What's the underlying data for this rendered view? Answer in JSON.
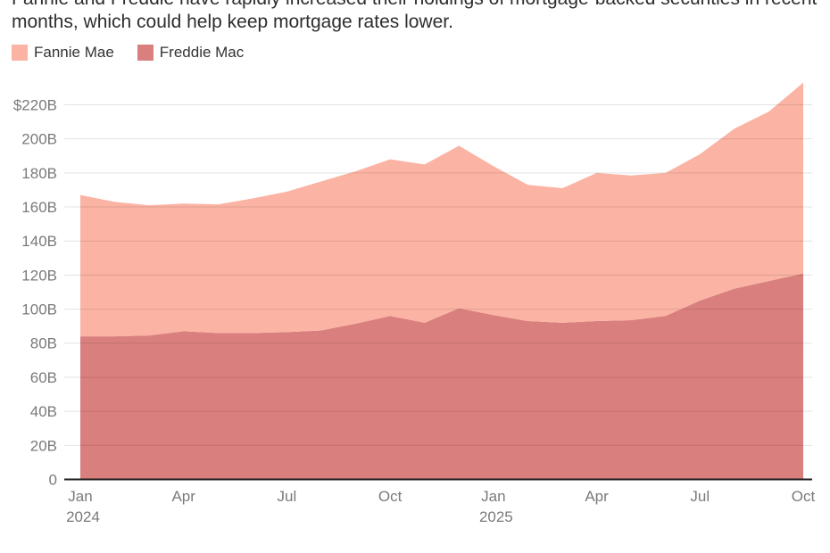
{
  "title": {
    "line1": "Fannie and Freddie have rapidly increased their holdings of mortgage-backed securities in recent",
    "line2": "months, which could help keep mortgage rates lower."
  },
  "legend": [
    {
      "label": "Fannie Mae",
      "color": "#FBB3A3"
    },
    {
      "label": "Freddie Mac",
      "color": "#D97F7E"
    }
  ],
  "chart_data": {
    "type": "area",
    "stacked": true,
    "unit": "billions of dollars",
    "x": [
      "Jan 2024",
      "Feb 2024",
      "Mar 2024",
      "Apr 2024",
      "May 2024",
      "Jun 2024",
      "Jul 2024",
      "Aug 2024",
      "Sep 2024",
      "Oct 2024",
      "Nov 2024",
      "Dec 2024",
      "Jan 2025",
      "Feb 2025",
      "Mar 2025",
      "Apr 2025",
      "May 2025",
      "Jun 2025",
      "Jul 2025",
      "Aug 2025",
      "Sep 2025",
      "Oct 2025"
    ],
    "series": [
      {
        "name": "Freddie Mac",
        "color": "#D97F7E",
        "values": [
          84,
          84,
          84.5,
          87,
          86,
          86,
          86.5,
          87.5,
          91.5,
          96,
          92,
          100.5,
          96.5,
          93,
          92,
          93,
          93.5,
          96,
          105,
          112,
          116.5,
          121
        ]
      },
      {
        "name": "Fannie Mae",
        "color": "#FBB3A3",
        "values": [
          83,
          79,
          76.5,
          75,
          75.5,
          79,
          82.5,
          87.5,
          89.5,
          92,
          93,
          95.5,
          87.5,
          80,
          79,
          87,
          85,
          84,
          86,
          94,
          99.5,
          112
        ]
      }
    ],
    "stacked_totals": [
      167,
      163,
      161,
      162,
      161.5,
      165,
      169,
      175,
      181,
      188,
      185,
      196,
      184,
      173,
      171,
      180,
      178.5,
      180,
      191,
      206,
      216,
      233
    ],
    "stack_order_bottom_to_top": [
      "Freddie Mac",
      "Fannie Mae"
    ],
    "y_ticks": [
      "$220B",
      "200B",
      "180B",
      "160B",
      "140B",
      "120B",
      "100B",
      "80B",
      "60B",
      "40B",
      "20B",
      "0"
    ],
    "y_tick_values": [
      220,
      200,
      180,
      160,
      140,
      120,
      100,
      80,
      60,
      40,
      20,
      0
    ],
    "x_tick_labels": [
      {
        "index": 0,
        "label": "Jan",
        "year": "2024"
      },
      {
        "index": 3,
        "label": "Apr"
      },
      {
        "index": 6,
        "label": "Jul"
      },
      {
        "index": 9,
        "label": "Oct"
      },
      {
        "index": 12,
        "label": "Jan",
        "year": "2025"
      },
      {
        "index": 15,
        "label": "Apr"
      },
      {
        "index": 18,
        "label": "Jul"
      },
      {
        "index": 21,
        "label": "Oct"
      }
    ],
    "ylim": [
      0,
      240
    ],
    "grid": "horizontal",
    "legend_position": "top-left",
    "colors": {
      "grid_on_white": "#e0e0e0",
      "baseline": "#1c1c1c",
      "axis_label": "#7a7a7a",
      "title_text": "#2e2e2e"
    }
  }
}
